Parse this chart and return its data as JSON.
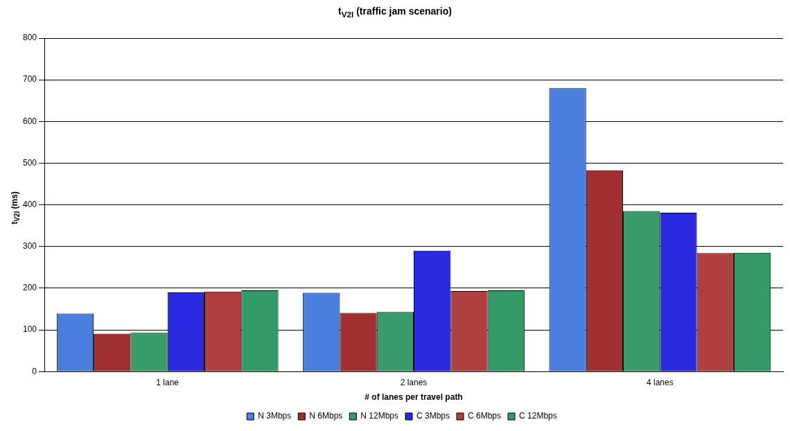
{
  "chart_data": {
    "type": "bar",
    "title": "t$_{V2I}$ (traffic jam scenario)",
    "xlabel": "# of lanes per travel path",
    "ylabel": "t$_{V2I}$ (ms)",
    "categories": [
      "1 lane",
      "2 lanes",
      "4 lanes"
    ],
    "series": [
      {
        "name": "N 3Mbps",
        "color": "#4a7fe0",
        "values": [
          139,
          189,
          680
        ]
      },
      {
        "name": "N 6Mbps",
        "color": "#a03030",
        "values": [
          91,
          141,
          483
        ]
      },
      {
        "name": "N 12Mbps",
        "color": "#3a9a6a",
        "values": [
          93,
          143,
          385
        ]
      },
      {
        "name": "C 3Mbps",
        "color": "#2a2ae0",
        "values": [
          190,
          290,
          381
        ]
      },
      {
        "name": "C 6Mbps",
        "color": "#b04040",
        "values": [
          192,
          193,
          284
        ]
      },
      {
        "name": "C 12Mbps",
        "color": "#339966",
        "values": [
          195,
          195,
          285
        ]
      }
    ],
    "ylim": [
      0,
      800
    ],
    "yticks": [
      0,
      100,
      200,
      300,
      400,
      500,
      600,
      700,
      800
    ],
    "grid": "y",
    "legend": "bottom"
  }
}
